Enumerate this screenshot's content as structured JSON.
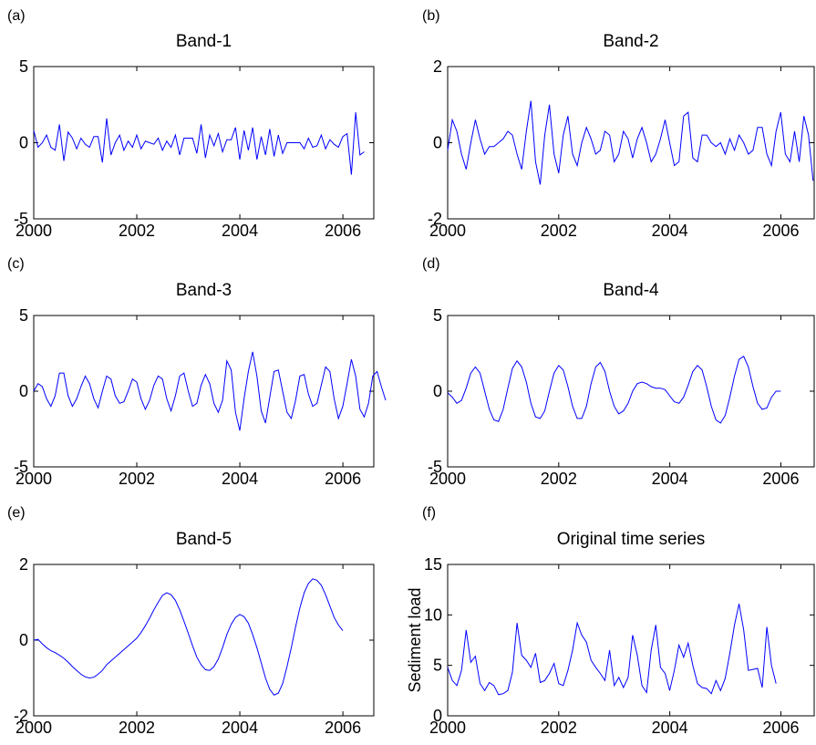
{
  "chart_data": [
    {
      "panel": "(a)",
      "type": "line",
      "title": "Band-1",
      "ylabel": "",
      "xlim": [
        2000,
        2006.6
      ],
      "ylim": [
        -5,
        5
      ],
      "xticks": [
        2000,
        2002,
        2004,
        2006
      ],
      "xtick_labels": [
        "2000",
        "2002",
        "2004",
        "2006"
      ],
      "yticks": [
        -5,
        0,
        5
      ],
      "ytick_labels": [
        "-5",
        "0",
        "5"
      ],
      "color": "#0000ff",
      "x_start": 2000.0,
      "x_step": 0.0833,
      "values": [
        0.8,
        -0.3,
        0.0,
        0.5,
        -0.3,
        -0.5,
        1.2,
        -1.2,
        0.7,
        0.3,
        -0.4,
        0.3,
        -0.1,
        -0.3,
        0.4,
        0.4,
        -1.3,
        1.6,
        -0.8,
        0.0,
        0.5,
        -0.5,
        0.1,
        -0.3,
        0.5,
        -0.4,
        0.1,
        0.0,
        -0.1,
        0.3,
        -0.5,
        0.1,
        -0.3,
        0.5,
        -0.8,
        0.3,
        0.3,
        0.3,
        -0.7,
        1.2,
        -1.0,
        0.5,
        -0.2,
        0.6,
        -0.6,
        0.2,
        0.2,
        1.0,
        -1.1,
        0.8,
        -0.5,
        1.0,
        -1.1,
        0.4,
        -0.8,
        0.9,
        -0.9,
        0.5,
        -0.7,
        0.0,
        0.0,
        0.0,
        0.0,
        -0.4,
        0.3,
        -0.3,
        -0.2,
        0.5,
        -0.4,
        0.2,
        -0.1,
        -0.3,
        0.4,
        0.6,
        -2.1,
        2.0,
        -0.8,
        -0.6
      ]
    },
    {
      "panel": "(b)",
      "type": "line",
      "title": "Band-2",
      "ylabel": "",
      "xlim": [
        2000,
        2006.6
      ],
      "ylim": [
        -2,
        2
      ],
      "xticks": [
        2000,
        2002,
        2004,
        2006
      ],
      "xtick_labels": [
        "2000",
        "2002",
        "2004",
        "2006"
      ],
      "yticks": [
        -2,
        0,
        2
      ],
      "ytick_labels": [
        "-2",
        "0",
        "2"
      ],
      "color": "#0000ff",
      "x_start": 2000.0,
      "x_step": 0.0833,
      "values": [
        -0.2,
        0.6,
        0.3,
        -0.3,
        -0.7,
        0.0,
        0.6,
        0.1,
        -0.3,
        -0.1,
        -0.1,
        0.0,
        0.1,
        0.3,
        0.2,
        -0.3,
        -0.7,
        0.3,
        1.1,
        -0.5,
        -1.1,
        0.2,
        1.0,
        -0.3,
        -0.8,
        0.2,
        0.7,
        -0.3,
        -0.6,
        0.0,
        0.4,
        0.1,
        -0.3,
        -0.2,
        0.3,
        0.2,
        -0.5,
        -0.3,
        0.3,
        0.1,
        -0.4,
        0.1,
        0.4,
        0.0,
        -0.5,
        -0.3,
        0.1,
        0.6,
        0.0,
        -0.6,
        -0.5,
        0.7,
        0.8,
        -0.4,
        -0.5,
        0.2,
        0.2,
        0.0,
        -0.1,
        0.0,
        -0.3,
        0.1,
        -0.2,
        0.2,
        0.0,
        -0.3,
        -0.2,
        0.4,
        0.4,
        -0.3,
        -0.6,
        0.3,
        0.8,
        -0.3,
        -0.5,
        0.3,
        -0.5,
        0.7,
        0.2,
        -1.0
      ]
    },
    {
      "panel": "(c)",
      "type": "line",
      "title": "Band-3",
      "ylabel": "",
      "xlim": [
        2000,
        2006.6
      ],
      "ylim": [
        -5,
        5
      ],
      "xticks": [
        2000,
        2002,
        2004,
        2006
      ],
      "xtick_labels": [
        "2000",
        "2002",
        "2004",
        "2006"
      ],
      "yticks": [
        -5,
        0,
        5
      ],
      "ytick_labels": [
        "-5",
        "0",
        "5"
      ],
      "color": "#0000ff",
      "x_start": 2000.0,
      "x_step": 0.0833,
      "values": [
        0.0,
        0.5,
        0.3,
        -0.5,
        -1.0,
        -0.3,
        1.2,
        1.2,
        -0.3,
        -1.0,
        -0.5,
        0.3,
        1.0,
        0.5,
        -0.5,
        -1.1,
        0.0,
        1.0,
        0.8,
        -0.3,
        -0.8,
        -0.7,
        0.0,
        0.8,
        0.6,
        -0.5,
        -1.2,
        -0.6,
        0.4,
        1.0,
        0.8,
        -0.5,
        -1.3,
        -0.3,
        1.0,
        1.2,
        0.0,
        -1.0,
        -0.8,
        0.4,
        1.1,
        0.5,
        -0.8,
        -1.4,
        -0.6,
        2.0,
        1.4,
        -1.4,
        -2.6,
        -0.5,
        1.3,
        2.6,
        1.0,
        -1.3,
        -2.1,
        -0.4,
        1.3,
        1.4,
        0.0,
        -1.4,
        -1.8,
        -0.6,
        1.0,
        1.1,
        -0.2,
        -1.0,
        -0.8,
        0.4,
        1.6,
        1.3,
        -0.5,
        -1.8,
        -1.0,
        0.5,
        2.1,
        1.0,
        -1.2,
        -1.7,
        -0.8,
        1.0,
        1.3,
        0.3,
        -0.6
      ]
    },
    {
      "panel": "(d)",
      "type": "line",
      "title": "Band-4",
      "ylabel": "",
      "xlim": [
        2000,
        2006.6
      ],
      "ylim": [
        -5,
        5
      ],
      "xticks": [
        2000,
        2002,
        2004,
        2006
      ],
      "xtick_labels": [
        "2000",
        "2002",
        "2004",
        "2006"
      ],
      "yticks": [
        -5,
        0,
        5
      ],
      "ytick_labels": [
        "-5",
        "0",
        "5"
      ],
      "color": "#0000ff",
      "x_start": 2000.0,
      "x_step": 0.0833,
      "values": [
        -0.1,
        -0.4,
        -0.8,
        -0.6,
        0.2,
        1.2,
        1.6,
        1.2,
        0.0,
        -1.2,
        -1.9,
        -2.0,
        -1.2,
        0.2,
        1.5,
        2.0,
        1.6,
        0.6,
        -0.8,
        -1.7,
        -1.8,
        -1.3,
        0.0,
        1.2,
        1.7,
        1.4,
        0.3,
        -1.0,
        -1.8,
        -1.8,
        -1.0,
        0.5,
        1.6,
        1.9,
        1.3,
        0.0,
        -1.0,
        -1.5,
        -1.3,
        -0.8,
        0.0,
        0.5,
        0.6,
        0.5,
        0.3,
        0.2,
        0.2,
        0.1,
        -0.3,
        -0.7,
        -0.8,
        -0.4,
        0.4,
        1.3,
        1.7,
        1.4,
        0.3,
        -1.0,
        -1.9,
        -2.1,
        -1.6,
        -0.4,
        1.0,
        2.1,
        2.3,
        1.6,
        0.3,
        -0.8,
        -1.2,
        -1.1,
        -0.4,
        0.0,
        0.0
      ]
    },
    {
      "panel": "(e)",
      "type": "line",
      "title": "Band-5",
      "ylabel": "",
      "xlim": [
        2000,
        2006.6
      ],
      "ylim": [
        -2,
        2
      ],
      "xticks": [
        2000,
        2002,
        2004,
        2006
      ],
      "xtick_labels": [
        "2000",
        "2002",
        "2004",
        "2006"
      ],
      "yticks": [
        -2,
        0,
        2
      ],
      "ytick_labels": [
        "-2",
        "0",
        "2"
      ],
      "color": "#0000ff",
      "x_start": 2000.0,
      "x_step": 0.0833,
      "values": [
        0.0,
        0.02,
        -0.1,
        -0.2,
        -0.28,
        -0.33,
        -0.4,
        -0.48,
        -0.58,
        -0.7,
        -0.8,
        -0.9,
        -0.97,
        -1.0,
        -0.98,
        -0.9,
        -0.8,
        -0.65,
        -0.55,
        -0.45,
        -0.35,
        -0.25,
        -0.15,
        -0.05,
        0.05,
        0.2,
        0.38,
        0.58,
        0.8,
        1.0,
        1.18,
        1.25,
        1.2,
        1.05,
        0.8,
        0.5,
        0.18,
        -0.15,
        -0.45,
        -0.65,
        -0.78,
        -0.8,
        -0.7,
        -0.5,
        -0.2,
        0.15,
        0.42,
        0.6,
        0.68,
        0.62,
        0.45,
        0.15,
        -0.2,
        -0.6,
        -1.0,
        -1.3,
        -1.45,
        -1.4,
        -1.15,
        -0.7,
        -0.2,
        0.35,
        0.85,
        1.25,
        1.5,
        1.62,
        1.58,
        1.45,
        1.2,
        0.9,
        0.6,
        0.4,
        0.25
      ]
    },
    {
      "panel": "(f)",
      "type": "line",
      "title": "Original time series",
      "ylabel": "Sediment load",
      "xlim": [
        2000,
        2006.6
      ],
      "ylim": [
        0,
        15
      ],
      "xticks": [
        2000,
        2002,
        2004,
        2006
      ],
      "xtick_labels": [
        "2000",
        "2002",
        "2004",
        "2006"
      ],
      "yticks": [
        0,
        5,
        10,
        15
      ],
      "ytick_labels": [
        "0",
        "5",
        "10",
        "15"
      ],
      "color": "#0000ff",
      "x_start": 2000.0,
      "x_step": 0.0833,
      "values": [
        4.8,
        3.5,
        3.0,
        4.5,
        8.5,
        5.3,
        5.9,
        3.2,
        2.5,
        3.3,
        3.0,
        2.1,
        2.2,
        2.5,
        4.3,
        9.2,
        6.0,
        5.5,
        4.8,
        6.2,
        3.3,
        3.5,
        4.2,
        5.2,
        3.2,
        3.0,
        4.5,
        6.5,
        9.2,
        8.0,
        7.3,
        5.5,
        4.8,
        4.2,
        3.5,
        6.5,
        3.0,
        3.8,
        2.8,
        3.8,
        8.0,
        6.0,
        3.0,
        2.3,
        6.5,
        9.0,
        4.8,
        4.2,
        2.5,
        4.5,
        7.0,
        5.8,
        7.2,
        5.0,
        3.2,
        2.8,
        2.7,
        2.2,
        3.5,
        2.5,
        3.7,
        6.2,
        9.0,
        11.1,
        8.5,
        4.5,
        4.6,
        4.7,
        2.8,
        8.8,
        5.0,
        3.2
      ]
    }
  ]
}
